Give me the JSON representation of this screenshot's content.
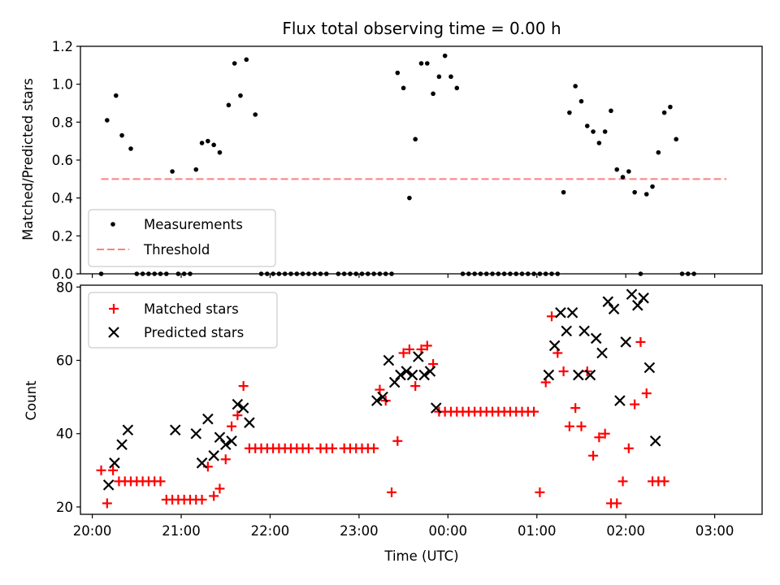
{
  "chart_data": [
    {
      "type": "scatter",
      "title": "Flux total observing time = 0.00 h",
      "xlabel": "",
      "ylabel": "Matched/Predicted stars",
      "ylim": [
        0,
        1.2
      ],
      "yticks": [
        "0.0",
        "0.2",
        "0.4",
        "0.6",
        "0.8",
        "1.0",
        "1.2"
      ],
      "xlim": [
        "19:52",
        "03:32"
      ],
      "legend_position": "lower-left",
      "threshold": {
        "name": "Threshold",
        "y": 0.5,
        "x_start": "20:06",
        "x_end": "03:08",
        "color": "#ff7f7f"
      },
      "series": [
        {
          "name": "Measurements",
          "color": "#000000",
          "marker": "dot",
          "points": [
            [
              "20:06",
              0.0
            ],
            [
              "20:10",
              0.81
            ],
            [
              "20:16",
              0.94
            ],
            [
              "20:20",
              0.73
            ],
            [
              "20:26",
              0.66
            ],
            [
              "20:30",
              0.0
            ],
            [
              "20:34",
              0.0
            ],
            [
              "20:38",
              0.0
            ],
            [
              "20:42",
              0.0
            ],
            [
              "20:46",
              0.0
            ],
            [
              "20:50",
              0.0
            ],
            [
              "20:54",
              0.54
            ],
            [
              "20:58",
              0.0
            ],
            [
              "21:02",
              0.0
            ],
            [
              "21:06",
              0.0
            ],
            [
              "21:10",
              0.55
            ],
            [
              "21:14",
              0.69
            ],
            [
              "21:18",
              0.7
            ],
            [
              "21:22",
              0.68
            ],
            [
              "21:26",
              0.64
            ],
            [
              "21:32",
              0.89
            ],
            [
              "21:36",
              1.11
            ],
            [
              "21:40",
              0.94
            ],
            [
              "21:44",
              1.13
            ],
            [
              "21:50",
              0.84
            ],
            [
              "21:54",
              0.0
            ],
            [
              "21:58",
              0.0
            ],
            [
              "22:02",
              0.0
            ],
            [
              "22:06",
              0.0
            ],
            [
              "22:10",
              0.0
            ],
            [
              "22:14",
              0.0
            ],
            [
              "22:18",
              0.0
            ],
            [
              "22:22",
              0.0
            ],
            [
              "22:26",
              0.0
            ],
            [
              "22:30",
              0.0
            ],
            [
              "22:34",
              0.0
            ],
            [
              "22:38",
              0.0
            ],
            [
              "22:46",
              0.0
            ],
            [
              "22:50",
              0.0
            ],
            [
              "22:54",
              0.0
            ],
            [
              "22:58",
              0.0
            ],
            [
              "23:02",
              0.0
            ],
            [
              "23:06",
              0.0
            ],
            [
              "23:10",
              0.0
            ],
            [
              "23:14",
              0.0
            ],
            [
              "23:18",
              0.0
            ],
            [
              "23:22",
              0.0
            ],
            [
              "23:26",
              1.06
            ],
            [
              "23:30",
              0.98
            ],
            [
              "23:34",
              0.4
            ],
            [
              "23:38",
              0.71
            ],
            [
              "23:42",
              1.11
            ],
            [
              "23:46",
              1.11
            ],
            [
              "23:50",
              0.95
            ],
            [
              "23:54",
              1.04
            ],
            [
              "23:58",
              1.15
            ],
            [
              "00:02",
              1.04
            ],
            [
              "00:06",
              0.98
            ],
            [
              "00:10",
              0.0
            ],
            [
              "00:14",
              0.0
            ],
            [
              "00:18",
              0.0
            ],
            [
              "00:22",
              0.0
            ],
            [
              "00:26",
              0.0
            ],
            [
              "00:30",
              0.0
            ],
            [
              "00:34",
              0.0
            ],
            [
              "00:38",
              0.0
            ],
            [
              "00:42",
              0.0
            ],
            [
              "00:46",
              0.0
            ],
            [
              "00:50",
              0.0
            ],
            [
              "00:54",
              0.0
            ],
            [
              "00:58",
              0.0
            ],
            [
              "01:02",
              0.0
            ],
            [
              "01:06",
              0.0
            ],
            [
              "01:10",
              0.0
            ],
            [
              "01:14",
              0.0
            ],
            [
              "01:18",
              0.43
            ],
            [
              "01:22",
              0.85
            ],
            [
              "01:26",
              0.99
            ],
            [
              "01:30",
              0.91
            ],
            [
              "01:34",
              0.78
            ],
            [
              "01:38",
              0.75
            ],
            [
              "01:42",
              0.69
            ],
            [
              "01:46",
              0.75
            ],
            [
              "01:50",
              0.86
            ],
            [
              "01:54",
              0.55
            ],
            [
              "01:58",
              0.51
            ],
            [
              "02:02",
              0.54
            ],
            [
              "02:06",
              0.43
            ],
            [
              "02:10",
              0.0
            ],
            [
              "02:14",
              0.42
            ],
            [
              "02:18",
              0.46
            ],
            [
              "02:22",
              0.64
            ],
            [
              "02:26",
              0.85
            ],
            [
              "02:30",
              0.88
            ],
            [
              "02:34",
              0.71
            ],
            [
              "02:38",
              0.0
            ],
            [
              "02:42",
              0.0
            ],
            [
              "02:46",
              0.0
            ]
          ]
        }
      ]
    },
    {
      "type": "scatter",
      "title": "",
      "xlabel": "Time (UTC)",
      "ylabel": "Count",
      "ylim": [
        18,
        80.5
      ],
      "yticks": [
        "20",
        "40",
        "60",
        "80"
      ],
      "xlim": [
        "19:52",
        "03:32"
      ],
      "xticks": [
        "20:00",
        "21:00",
        "22:00",
        "23:00",
        "00:00",
        "01:00",
        "02:00",
        "03:00"
      ],
      "legend_position": "top-left",
      "series": [
        {
          "name": "Matched stars",
          "color": "#ff0000",
          "marker": "plus",
          "points": [
            [
              "20:06",
              30
            ],
            [
              "20:10",
              21
            ],
            [
              "20:14",
              30
            ],
            [
              "20:18",
              27
            ],
            [
              "20:22",
              27
            ],
            [
              "20:26",
              27
            ],
            [
              "20:30",
              27
            ],
            [
              "20:34",
              27
            ],
            [
              "20:38",
              27
            ],
            [
              "20:42",
              27
            ],
            [
              "20:46",
              27
            ],
            [
              "20:50",
              22
            ],
            [
              "20:54",
              22
            ],
            [
              "20:58",
              22
            ],
            [
              "21:02",
              22
            ],
            [
              "21:06",
              22
            ],
            [
              "21:10",
              22
            ],
            [
              "21:14",
              22
            ],
            [
              "21:18",
              31
            ],
            [
              "21:22",
              23
            ],
            [
              "21:26",
              25
            ],
            [
              "21:30",
              33
            ],
            [
              "21:34",
              42
            ],
            [
              "21:38",
              45
            ],
            [
              "21:42",
              53
            ],
            [
              "21:46",
              36
            ],
            [
              "21:50",
              36
            ],
            [
              "21:54",
              36
            ],
            [
              "21:58",
              36
            ],
            [
              "22:02",
              36
            ],
            [
              "22:06",
              36
            ],
            [
              "22:10",
              36
            ],
            [
              "22:14",
              36
            ],
            [
              "22:18",
              36
            ],
            [
              "22:22",
              36
            ],
            [
              "22:26",
              36
            ],
            [
              "22:34",
              36
            ],
            [
              "22:38",
              36
            ],
            [
              "22:42",
              36
            ],
            [
              "22:50",
              36
            ],
            [
              "22:54",
              36
            ],
            [
              "22:58",
              36
            ],
            [
              "23:02",
              36
            ],
            [
              "23:06",
              36
            ],
            [
              "23:10",
              36
            ],
            [
              "23:14",
              52
            ],
            [
              "23:18",
              49
            ],
            [
              "23:22",
              24
            ],
            [
              "23:26",
              38
            ],
            [
              "23:30",
              62
            ],
            [
              "23:34",
              63
            ],
            [
              "23:38",
              53
            ],
            [
              "23:42",
              63
            ],
            [
              "23:46",
              64
            ],
            [
              "23:50",
              59
            ],
            [
              "23:54",
              46
            ],
            [
              "23:58",
              46
            ],
            [
              "00:02",
              46
            ],
            [
              "00:06",
              46
            ],
            [
              "00:10",
              46
            ],
            [
              "00:14",
              46
            ],
            [
              "00:18",
              46
            ],
            [
              "00:22",
              46
            ],
            [
              "00:26",
              46
            ],
            [
              "00:30",
              46
            ],
            [
              "00:34",
              46
            ],
            [
              "00:38",
              46
            ],
            [
              "00:42",
              46
            ],
            [
              "00:46",
              46
            ],
            [
              "00:50",
              46
            ],
            [
              "00:54",
              46
            ],
            [
              "00:58",
              46
            ],
            [
              "01:02",
              24
            ],
            [
              "01:06",
              54
            ],
            [
              "01:10",
              72
            ],
            [
              "01:14",
              62
            ],
            [
              "01:18",
              57
            ],
            [
              "01:22",
              42
            ],
            [
              "01:26",
              47
            ],
            [
              "01:30",
              42
            ],
            [
              "01:34",
              57
            ],
            [
              "01:38",
              34
            ],
            [
              "01:42",
              39
            ],
            [
              "01:46",
              40
            ],
            [
              "01:50",
              21
            ],
            [
              "01:54",
              21
            ],
            [
              "01:58",
              27
            ],
            [
              "02:02",
              36
            ],
            [
              "02:06",
              48
            ],
            [
              "02:10",
              65
            ],
            [
              "02:14",
              51
            ],
            [
              "02:18",
              27
            ],
            [
              "02:22",
              27
            ],
            [
              "02:26",
              27
            ]
          ]
        },
        {
          "name": "Predicted stars",
          "color": "#000000",
          "marker": "x",
          "points": [
            [
              "20:11",
              26
            ],
            [
              "20:15",
              32
            ],
            [
              "20:20",
              37
            ],
            [
              "20:24",
              41
            ],
            [
              "20:56",
              41
            ],
            [
              "21:10",
              40
            ],
            [
              "21:14",
              32
            ],
            [
              "21:18",
              44
            ],
            [
              "21:22",
              34
            ],
            [
              "21:26",
              39
            ],
            [
              "21:30",
              37
            ],
            [
              "21:34",
              38
            ],
            [
              "21:38",
              48
            ],
            [
              "21:42",
              47
            ],
            [
              "21:46",
              43
            ],
            [
              "23:12",
              49
            ],
            [
              "23:16",
              50
            ],
            [
              "23:20",
              60
            ],
            [
              "23:24",
              54
            ],
            [
              "23:28",
              56
            ],
            [
              "23:32",
              57
            ],
            [
              "23:36",
              56
            ],
            [
              "23:40",
              61
            ],
            [
              "23:44",
              56
            ],
            [
              "23:48",
              57
            ],
            [
              "23:52",
              47
            ],
            [
              "01:08",
              56
            ],
            [
              "01:12",
              64
            ],
            [
              "01:16",
              73
            ],
            [
              "01:20",
              68
            ],
            [
              "01:24",
              73
            ],
            [
              "01:28",
              56
            ],
            [
              "01:32",
              68
            ],
            [
              "01:36",
              56
            ],
            [
              "01:40",
              66
            ],
            [
              "01:44",
              62
            ],
            [
              "01:48",
              76
            ],
            [
              "01:52",
              74
            ],
            [
              "01:56",
              49
            ],
            [
              "02:00",
              65
            ],
            [
              "02:04",
              78
            ],
            [
              "02:08",
              75
            ],
            [
              "02:12",
              77
            ],
            [
              "02:16",
              58
            ],
            [
              "02:20",
              38
            ]
          ]
        }
      ]
    }
  ]
}
